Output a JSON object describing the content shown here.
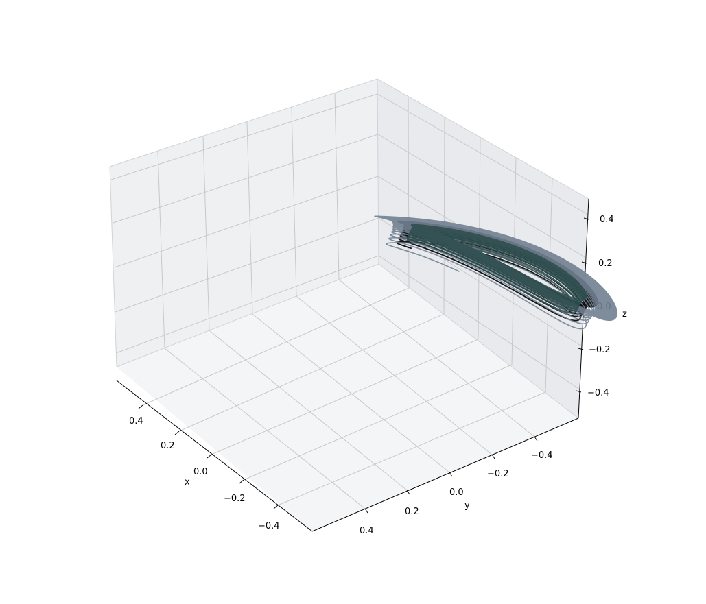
{
  "chart_data": {
    "type": "line3d",
    "title": "",
    "xlabel": "x",
    "ylabel": "y",
    "zlabel": "z",
    "xlim": [
      -0.55,
      0.55
    ],
    "ylim": [
      -0.55,
      0.55
    ],
    "zlim": [
      -0.5,
      0.5
    ],
    "x_ticks": [
      0.4,
      0.2,
      0.0,
      -0.2,
      -0.4
    ],
    "x_tick_labels": [
      "0.4",
      "0.2",
      "0.0",
      "−0.2",
      "−0.4"
    ],
    "y_ticks": [
      0.4,
      0.2,
      0.0,
      -0.2,
      -0.4
    ],
    "y_tick_labels": [
      "0.4",
      "0.2",
      "0.0",
      "−0.2",
      "−0.4"
    ],
    "z_ticks": [
      0.4,
      0.2,
      0.0,
      -0.2,
      -0.4
    ],
    "z_tick_labels": [
      "0.4",
      "0.2",
      "0.0",
      "−0.2",
      "−0.4"
    ],
    "grid": true,
    "series": [
      {
        "color": "#000000"
      },
      {
        "color": "#708090"
      },
      {
        "color": "#2f4f4f"
      }
    ]
  }
}
